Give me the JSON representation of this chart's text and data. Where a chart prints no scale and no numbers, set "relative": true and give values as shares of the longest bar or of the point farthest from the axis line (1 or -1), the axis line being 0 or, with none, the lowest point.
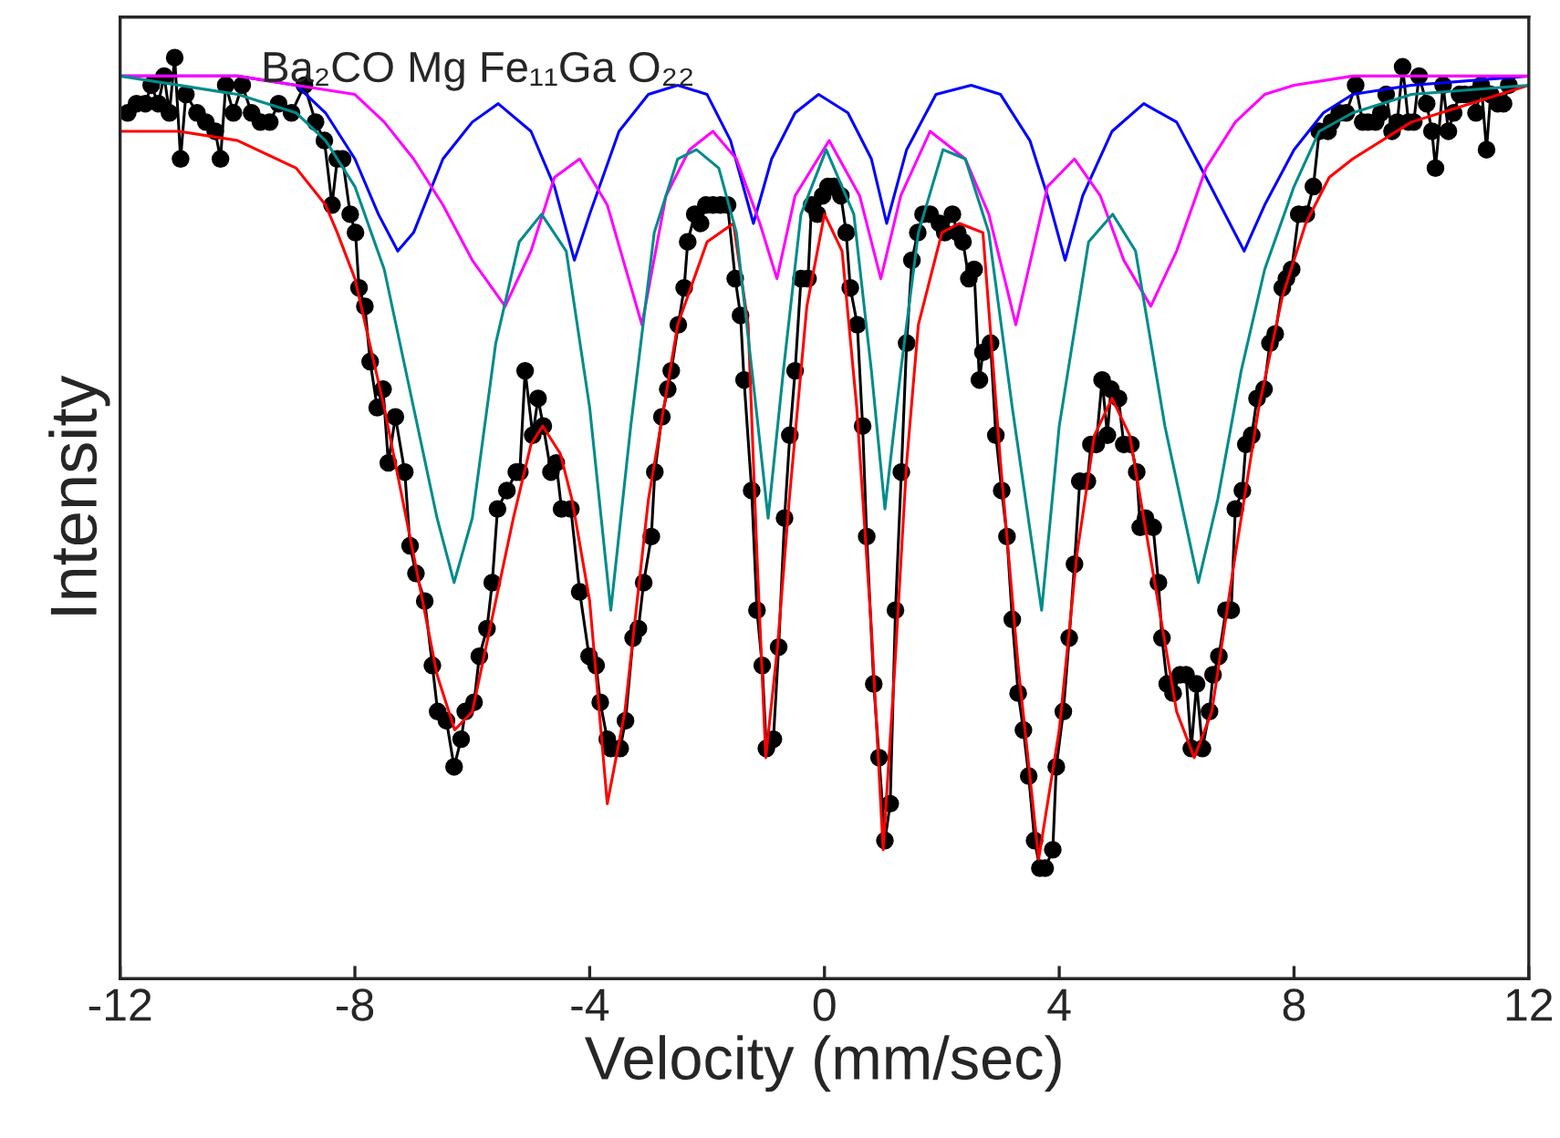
{
  "chart_data": {
    "type": "line",
    "title": "Ba₂CO Mg Fe₁₁Ga O₂₂",
    "xlabel": "Velocity (mm/sec)",
    "ylabel": "Intensity",
    "relative": true,
    "xlim": [
      -12,
      12
    ],
    "xticks": [
      -12,
      -8,
      -4,
      0,
      4,
      8,
      12
    ],
    "grid": false,
    "legend": false,
    "series": [
      {
        "color": "#000000",
        "marker": "circle",
        "x": [
          -11.87,
          -11.72,
          -11.57,
          -11.47,
          -11.35,
          -11.25,
          -11.16,
          -11.07,
          -10.97,
          -10.88,
          -10.69,
          -10.54,
          -10.38,
          -10.29,
          -10.2,
          -10.07,
          -9.92,
          -9.76,
          -9.61,
          -9.45,
          -9.3,
          -9.08,
          -8.86,
          -8.67,
          -8.52,
          -8.39,
          -8.3,
          -8.21,
          -8.08,
          -7.99,
          -7.93,
          -7.83,
          -7.74,
          -7.62,
          -7.52,
          -7.43,
          -7.31,
          -7.15,
          -7.06,
          -6.96,
          -6.81,
          -6.68,
          -6.59,
          -6.44,
          -6.31,
          -6.19,
          -6.12,
          -5.97,
          -5.88,
          -5.75,
          -5.66,
          -5.57,
          -5.41,
          -5.25,
          -5.19,
          -5.1,
          -4.97,
          -4.88,
          -4.79,
          -4.66,
          -4.57,
          -4.48,
          -4.32,
          -4.17,
          -4.01,
          -3.89,
          -3.82,
          -3.7,
          -3.64,
          -3.48,
          -3.39,
          -3.26,
          -3.17,
          -3.08,
          -2.95,
          -2.89,
          -2.77,
          -2.67,
          -2.61,
          -2.49,
          -2.39,
          -2.33,
          -2.21,
          -2.11,
          -2.02,
          -1.9,
          -1.77,
          -1.65,
          -1.52,
          -1.43,
          -1.37,
          -1.24,
          -1.15,
          -1.06,
          -0.99,
          -0.87,
          -0.78,
          -0.68,
          -0.59,
          -0.5,
          -0.4,
          -0.28,
          -0.22,
          -0.12,
          -0.03,
          0.06,
          0.16,
          0.28,
          0.37,
          0.44,
          0.56,
          0.65,
          0.72,
          0.84,
          0.93,
          1.03,
          1.12,
          1.21,
          1.31,
          1.4,
          1.49,
          1.59,
          1.68,
          1.8,
          1.96,
          2.05,
          2.18,
          2.27,
          2.36,
          2.46,
          2.55,
          2.64,
          2.7,
          2.83,
          2.92,
          3.02,
          3.11,
          3.2,
          3.3,
          3.39,
          3.48,
          3.58,
          3.67,
          3.76,
          3.89,
          3.95,
          4.07,
          4.17,
          4.26,
          4.35,
          4.48,
          4.54,
          4.63,
          4.73,
          4.82,
          4.88,
          5.01,
          5.1,
          5.22,
          5.32,
          5.38,
          5.47,
          5.6,
          5.69,
          5.75,
          5.84,
          5.94,
          6.06,
          6.16,
          6.25,
          6.34,
          6.44,
          6.56,
          6.62,
          6.72,
          6.84,
          6.93,
          7.0,
          7.12,
          7.18,
          7.28,
          7.37,
          7.49,
          7.59,
          7.68,
          7.8,
          7.87,
          7.96,
          8.08,
          8.21,
          8.33,
          8.43,
          8.58,
          8.64,
          8.77,
          8.89,
          9.05,
          9.17,
          9.26,
          9.39,
          9.48,
          9.57,
          9.67,
          9.76,
          9.85,
          9.95,
          10.04,
          10.13,
          10.26,
          10.35,
          10.41,
          10.54,
          10.63,
          10.72,
          10.82,
          10.91,
          11.04,
          11.1,
          11.19,
          11.28,
          11.35,
          11.47,
          11.57,
          11.66
        ],
        "values": [
          0.94,
          0.95,
          0.95,
          0.97,
          0.95,
          0.98,
          0.94,
          1.0,
          0.89,
          0.96,
          0.94,
          0.93,
          0.92,
          0.89,
          0.97,
          0.94,
          0.97,
          0.94,
          0.93,
          0.93,
          0.95,
          0.94,
          0.97,
          0.93,
          0.91,
          0.84,
          0.89,
          0.89,
          0.83,
          0.81,
          0.75,
          0.73,
          0.67,
          0.62,
          0.64,
          0.56,
          0.61,
          0.55,
          0.47,
          0.44,
          0.41,
          0.34,
          0.29,
          0.28,
          0.23,
          0.26,
          0.29,
          0.3,
          0.35,
          0.38,
          0.43,
          0.51,
          0.53,
          0.55,
          0.55,
          0.66,
          0.59,
          0.63,
          0.6,
          0.55,
          0.56,
          0.51,
          0.51,
          0.42,
          0.35,
          0.34,
          0.3,
          0.26,
          0.25,
          0.25,
          0.28,
          0.37,
          0.38,
          0.43,
          0.48,
          0.55,
          0.61,
          0.64,
          0.66,
          0.71,
          0.75,
          0.8,
          0.83,
          0.82,
          0.84,
          0.84,
          0.84,
          0.84,
          0.76,
          0.72,
          0.65,
          0.53,
          0.4,
          0.34,
          0.25,
          0.26,
          0.36,
          0.5,
          0.59,
          0.66,
          0.76,
          0.76,
          0.84,
          0.83,
          0.85,
          0.86,
          0.86,
          0.85,
          0.81,
          0.75,
          0.71,
          0.6,
          0.48,
          0.32,
          0.24,
          0.15,
          0.19,
          0.4,
          0.55,
          0.69,
          0.78,
          0.81,
          0.83,
          0.83,
          0.82,
          0.81,
          0.83,
          0.81,
          0.8,
          0.76,
          0.77,
          0.65,
          0.68,
          0.69,
          0.59,
          0.53,
          0.48,
          0.39,
          0.31,
          0.27,
          0.22,
          0.15,
          0.12,
          0.12,
          0.14,
          0.23,
          0.29,
          0.37,
          0.45,
          0.54,
          0.54,
          0.58,
          0.58,
          0.65,
          0.59,
          0.64,
          0.63,
          0.58,
          0.58,
          0.55,
          0.49,
          0.5,
          0.49,
          0.43,
          0.37,
          0.32,
          0.31,
          0.33,
          0.33,
          0.25,
          0.32,
          0.25,
          0.29,
          0.33,
          0.35,
          0.4,
          0.4,
          0.51,
          0.53,
          0.58,
          0.59,
          0.63,
          0.64,
          0.69,
          0.7,
          0.75,
          0.76,
          0.77,
          0.83,
          0.83,
          0.86,
          0.92,
          0.92,
          0.93,
          0.94,
          0.94,
          0.97,
          0.93,
          0.93,
          0.93,
          0.94,
          0.96,
          0.92,
          0.93,
          0.99,
          0.93,
          0.93,
          0.98,
          0.95,
          0.92,
          0.88,
          0.97,
          0.92,
          0.94,
          0.96,
          0.96,
          0.96,
          0.94,
          0.97,
          0.9,
          0.96,
          0.95,
          0.95,
          0.97
        ]
      },
      {
        "color": "#ff0000",
        "marker": "none",
        "x": [
          -12,
          -11,
          -10,
          -9,
          -8.5,
          -8.3,
          -8,
          -7.5,
          -7,
          -6.6,
          -6.3,
          -6.0,
          -5.7,
          -5.3,
          -5.0,
          -4.8,
          -4.5,
          -4.3,
          -4.0,
          -3.7,
          -3.4,
          -3.0,
          -2.5,
          -2.0,
          -1.55,
          -1.3,
          -1.15,
          -1.0,
          -0.8,
          -0.6,
          -0.3,
          0.0,
          0.3,
          0.55,
          0.8,
          1.0,
          1.2,
          1.4,
          1.6,
          2.0,
          2.3,
          2.7,
          3.0,
          3.3,
          3.65,
          4.0,
          4.3,
          4.6,
          4.9,
          5.2,
          5.6,
          6.0,
          6.3,
          6.6,
          7.0,
          7.4,
          7.8,
          8.2,
          8.6,
          9.0,
          10.0,
          11.0,
          12.0
        ],
        "values": [
          0.92,
          0.92,
          0.91,
          0.88,
          0.84,
          0.81,
          0.76,
          0.62,
          0.46,
          0.33,
          0.27,
          0.29,
          0.38,
          0.5,
          0.58,
          0.6,
          0.57,
          0.52,
          0.41,
          0.19,
          0.29,
          0.52,
          0.71,
          0.8,
          0.82,
          0.71,
          0.46,
          0.24,
          0.36,
          0.52,
          0.73,
          0.83,
          0.79,
          0.62,
          0.38,
          0.14,
          0.34,
          0.56,
          0.71,
          0.81,
          0.82,
          0.81,
          0.56,
          0.34,
          0.13,
          0.27,
          0.46,
          0.59,
          0.63,
          0.59,
          0.44,
          0.29,
          0.24,
          0.29,
          0.46,
          0.62,
          0.74,
          0.82,
          0.87,
          0.89,
          0.93,
          0.95,
          0.97
        ]
      },
      {
        "color": "#0000ff",
        "marker": "none",
        "x": [
          -12,
          -10,
          -9,
          -8.5,
          -8,
          -7.6,
          -7.27,
          -7,
          -6.5,
          -6,
          -5.56,
          -5,
          -4.6,
          -4.26,
          -4,
          -3.5,
          -3,
          -2.5,
          -2,
          -1.6,
          -1.21,
          -0.9,
          -0.5,
          -0.1,
          0.4,
          0.8,
          1.06,
          1.4,
          1.9,
          2.5,
          3.0,
          3.5,
          3.8,
          4.1,
          4.4,
          4.9,
          5.44,
          6.0,
          6.5,
          7.15,
          7.5,
          8.0,
          8.5,
          9,
          10,
          12
        ],
        "values": [
          0.98,
          0.98,
          0.97,
          0.94,
          0.89,
          0.83,
          0.79,
          0.81,
          0.89,
          0.93,
          0.95,
          0.92,
          0.86,
          0.78,
          0.83,
          0.92,
          0.96,
          0.97,
          0.96,
          0.91,
          0.82,
          0.89,
          0.94,
          0.96,
          0.94,
          0.89,
          0.82,
          0.9,
          0.96,
          0.97,
          0.96,
          0.91,
          0.85,
          0.78,
          0.85,
          0.92,
          0.95,
          0.93,
          0.87,
          0.79,
          0.84,
          0.9,
          0.94,
          0.96,
          0.97,
          0.98
        ]
      },
      {
        "color": "#ff00ff",
        "marker": "none",
        "x": [
          -12,
          -10,
          -9,
          -8,
          -7.5,
          -7,
          -6.5,
          -6,
          -5.44,
          -5,
          -4.6,
          -4.17,
          -3.7,
          -3.11,
          -2.7,
          -2.3,
          -1.9,
          -1.5,
          -1.1,
          -0.81,
          -0.5,
          0.08,
          0.6,
          0.96,
          1.3,
          1.8,
          2.4,
          2.8,
          3.26,
          3.8,
          4.26,
          4.7,
          5.1,
          5.56,
          6.0,
          6.5,
          7,
          7.5,
          8,
          9,
          10,
          12
        ],
        "values": [
          0.98,
          0.98,
          0.97,
          0.96,
          0.93,
          0.89,
          0.84,
          0.78,
          0.73,
          0.79,
          0.87,
          0.89,
          0.84,
          0.71,
          0.85,
          0.9,
          0.92,
          0.89,
          0.82,
          0.76,
          0.85,
          0.91,
          0.85,
          0.76,
          0.85,
          0.92,
          0.89,
          0.83,
          0.71,
          0.86,
          0.89,
          0.85,
          0.78,
          0.73,
          0.79,
          0.88,
          0.93,
          0.96,
          0.97,
          0.98,
          0.98,
          0.98
        ]
      },
      {
        "color": "#008b8b",
        "marker": "none",
        "x": [
          -12,
          -10,
          -9,
          -8.5,
          -8,
          -7.5,
          -7,
          -6.6,
          -6.31,
          -6,
          -5.6,
          -5.2,
          -4.82,
          -4.4,
          -4,
          -3.64,
          -3.3,
          -2.9,
          -2.5,
          -2.18,
          -1.8,
          -1.5,
          -1.2,
          -0.96,
          -0.7,
          -0.4,
          0.03,
          0.5,
          0.8,
          1.03,
          1.3,
          1.6,
          2.02,
          2.4,
          2.8,
          3.2,
          3.7,
          4.0,
          4.5,
          4.91,
          5.3,
          5.8,
          6.37,
          6.7,
          7.1,
          7.5,
          8.0,
          8.43,
          9,
          10,
          12
        ],
        "values": [
          0.98,
          0.96,
          0.94,
          0.91,
          0.86,
          0.77,
          0.62,
          0.5,
          0.43,
          0.5,
          0.69,
          0.8,
          0.83,
          0.79,
          0.62,
          0.4,
          0.6,
          0.81,
          0.89,
          0.9,
          0.88,
          0.81,
          0.64,
          0.5,
          0.66,
          0.83,
          0.9,
          0.83,
          0.66,
          0.51,
          0.66,
          0.81,
          0.9,
          0.89,
          0.81,
          0.62,
          0.4,
          0.6,
          0.8,
          0.83,
          0.79,
          0.6,
          0.43,
          0.52,
          0.66,
          0.77,
          0.86,
          0.92,
          0.94,
          0.96,
          0.97
        ]
      }
    ]
  }
}
